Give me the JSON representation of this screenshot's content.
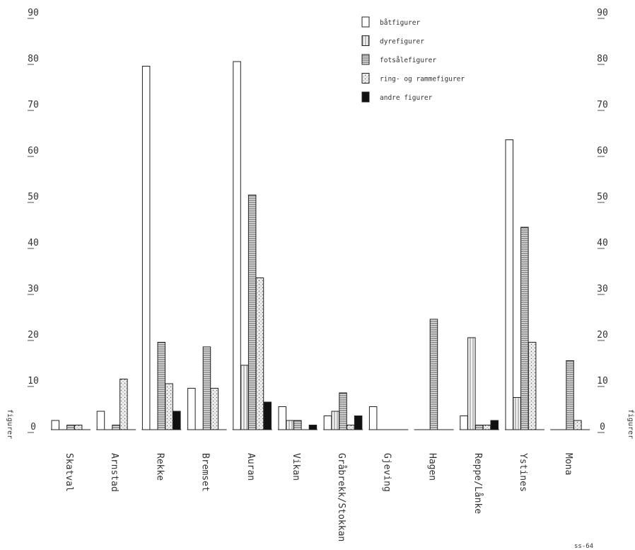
{
  "chart_data": {
    "type": "bar",
    "categories": [
      "Skatval",
      "Arnstad",
      "Rekke",
      "Bremset",
      "Auran",
      "Vikan",
      "Gråbrekk/Stokkan",
      "Gjeving",
      "Hagen",
      "Reppe/Lånke",
      "Ystines",
      "Mona"
    ],
    "series": [
      {
        "name": "båtfigurer",
        "values": [
          2,
          4,
          79,
          9,
          80,
          5,
          3,
          5,
          0,
          3,
          63,
          0
        ]
      },
      {
        "name": "dyrefigurer",
        "values": [
          0,
          0,
          0,
          0,
          14,
          2,
          4,
          0,
          0,
          20,
          7,
          0
        ]
      },
      {
        "name": "fotsålefigurer",
        "values": [
          1,
          1,
          19,
          18,
          51,
          2,
          8,
          0,
          24,
          1,
          44,
          15
        ]
      },
      {
        "name": "ring- og rammefigurer",
        "values": [
          1,
          11,
          10,
          9,
          33,
          0,
          1,
          0,
          0,
          1,
          19,
          2
        ]
      },
      {
        "name": "andre figurer",
        "values": [
          0,
          0,
          4,
          0,
          6,
          1,
          3,
          0,
          0,
          2,
          0,
          0
        ]
      }
    ],
    "ylabel": "figurer",
    "ylim": [
      0,
      90
    ],
    "yticks": [
      0,
      10,
      20,
      30,
      40,
      50,
      60,
      70,
      80,
      90
    ],
    "grid": false,
    "legend_position": "top-center",
    "footnote": "ss-64"
  },
  "colors": {
    "outline": "#222222",
    "background": "#ffffff",
    "dyr_fill": "#f3f3f3",
    "fot_fill": "#dddddd",
    "ring_fill": "#e4e4e4",
    "andre_fill": "#111111"
  }
}
